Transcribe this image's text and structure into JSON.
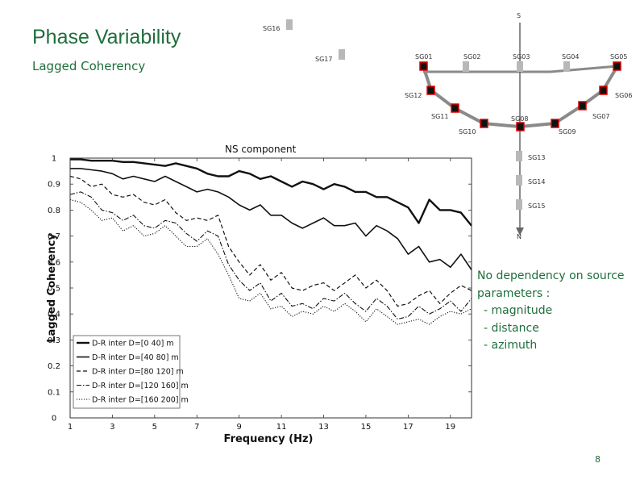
{
  "slide": {
    "title": "Phase Variability",
    "subtitle": "Lagged Coherency",
    "component_label": "NS component",
    "note": {
      "heading_lines": [
        "No dependency on source",
        "parameters :"
      ],
      "items": [
        "- magnitude",
        "- distance",
        "- azimuth"
      ]
    },
    "page_number": "8"
  },
  "array_map": {
    "north_label": "N",
    "south_label": "S",
    "stations": {
      "SG01": "SG01",
      "SG02": "SG02",
      "SG03": "SG03",
      "SG04": "SG04",
      "SG05": "SG05",
      "SG06": "SG06",
      "SG07": "SG07",
      "SG08": "SG08",
      "SG09": "SG09",
      "SG10": "SG10",
      "SG11": "SG11",
      "SG12": "SG12",
      "SG13": "SG13",
      "SG14": "SG14",
      "SG15": "SG15",
      "SG16": "SG16",
      "SG17": "SG17"
    },
    "colors": {
      "station_red": "#e00000",
      "station_gray": "#b8b8b8",
      "line_gray": "#8a8a8a"
    }
  },
  "chart_data": {
    "type": "line",
    "xlabel": "Frequency (Hz)",
    "ylabel": "Lagged Coherency",
    "xlim": [
      1,
      20
    ],
    "ylim": [
      0,
      1
    ],
    "xticks": [
      1,
      3,
      5,
      7,
      9,
      11,
      13,
      15,
      17,
      19
    ],
    "yticks": [
      0,
      0.1,
      0.2,
      0.3,
      0.4,
      0.5,
      "0.6",
      0.7,
      0.8,
      0.9,
      1
    ],
    "legend_position": "bottom-left",
    "grid": false,
    "series": [
      {
        "name": "D-R inter D=[0 40] m",
        "style": "solid-thick",
        "x": [
          1,
          1.5,
          2,
          2.5,
          3,
          3.5,
          4,
          4.5,
          5,
          5.5,
          6,
          6.5,
          7,
          7.5,
          8,
          8.5,
          9,
          9.5,
          10,
          10.5,
          11,
          11.5,
          12,
          12.5,
          13,
          13.5,
          14,
          14.5,
          15,
          15.5,
          16,
          16.5,
          17,
          17.5,
          18,
          18.5,
          19,
          19.5,
          20
        ],
        "y": [
          0.995,
          0.995,
          0.99,
          0.99,
          0.99,
          0.985,
          0.985,
          0.98,
          0.975,
          0.97,
          0.98,
          0.97,
          0.96,
          0.94,
          0.93,
          0.93,
          0.95,
          0.94,
          0.92,
          0.93,
          0.91,
          0.89,
          0.91,
          0.9,
          0.88,
          0.9,
          0.89,
          0.87,
          0.87,
          0.85,
          0.85,
          0.83,
          0.81,
          0.75,
          0.84,
          0.8,
          0.8,
          0.79,
          0.74
        ]
      },
      {
        "name": "D-R inter D=[40 80] m",
        "style": "solid",
        "x": [
          1,
          1.5,
          2,
          2.5,
          3,
          3.5,
          4,
          4.5,
          5,
          5.5,
          6,
          6.5,
          7,
          7.5,
          8,
          8.5,
          9,
          9.5,
          10,
          10.5,
          11,
          11.5,
          12,
          12.5,
          13,
          13.5,
          14,
          14.5,
          15,
          15.5,
          16,
          16.5,
          17,
          17.5,
          18,
          18.5,
          19,
          19.5,
          20
        ],
        "y": [
          0.96,
          0.96,
          0.955,
          0.95,
          0.94,
          0.92,
          0.93,
          0.92,
          0.91,
          0.93,
          0.91,
          0.89,
          0.87,
          0.88,
          0.87,
          0.85,
          0.82,
          0.8,
          0.82,
          0.78,
          0.78,
          0.75,
          0.73,
          0.75,
          0.77,
          0.74,
          0.74,
          0.75,
          0.7,
          0.74,
          0.72,
          0.69,
          0.63,
          0.66,
          0.6,
          0.61,
          0.58,
          0.63,
          0.57
        ]
      },
      {
        "name": "D-R inter D=[80 120] m",
        "style": "dashed",
        "x": [
          1,
          1.5,
          2,
          2.5,
          3,
          3.5,
          4,
          4.5,
          5,
          5.5,
          6,
          6.5,
          7,
          7.5,
          8,
          8.5,
          9,
          9.5,
          10,
          10.5,
          11,
          11.5,
          12,
          12.5,
          13,
          13.5,
          14,
          14.5,
          15,
          15.5,
          16,
          16.5,
          17,
          17.5,
          18,
          18.5,
          19,
          19.5,
          20
        ],
        "y": [
          0.93,
          0.92,
          0.89,
          0.9,
          0.86,
          0.85,
          0.86,
          0.83,
          0.82,
          0.84,
          0.79,
          0.76,
          0.77,
          0.76,
          0.78,
          0.66,
          0.6,
          0.55,
          0.59,
          0.53,
          0.56,
          0.5,
          0.49,
          0.51,
          0.52,
          0.49,
          0.52,
          0.55,
          0.5,
          0.53,
          0.49,
          0.43,
          0.44,
          0.47,
          0.49,
          0.44,
          0.48,
          0.51,
          0.49
        ]
      },
      {
        "name": "D-R inter D=[120 160] m",
        "style": "dash-dot",
        "x": [
          1,
          1.5,
          2,
          2.5,
          3,
          3.5,
          4,
          4.5,
          5,
          5.5,
          6,
          6.5,
          7,
          7.5,
          8,
          8.5,
          9,
          9.5,
          10,
          10.5,
          11,
          11.5,
          12,
          12.5,
          13,
          13.5,
          14,
          14.5,
          15,
          15.5,
          16,
          16.5,
          17,
          17.5,
          18,
          18.5,
          19,
          19.5,
          20
        ],
        "y": [
          0.86,
          0.87,
          0.85,
          0.8,
          0.79,
          0.76,
          0.78,
          0.74,
          0.73,
          0.76,
          0.75,
          0.71,
          0.68,
          0.72,
          0.7,
          0.59,
          0.53,
          0.49,
          0.52,
          0.45,
          0.48,
          0.43,
          0.44,
          0.42,
          0.46,
          0.45,
          0.48,
          0.44,
          0.41,
          0.46,
          0.43,
          0.38,
          0.39,
          0.43,
          0.4,
          0.42,
          0.45,
          0.41,
          0.46
        ]
      },
      {
        "name": "D-R inter D=[160 200] m",
        "style": "dotted",
        "x": [
          1,
          1.5,
          2,
          2.5,
          3,
          3.5,
          4,
          4.5,
          5,
          5.5,
          6,
          6.5,
          7,
          7.5,
          8,
          8.5,
          9,
          9.5,
          10,
          10.5,
          11,
          11.5,
          12,
          12.5,
          13,
          13.5,
          14,
          14.5,
          15,
          15.5,
          16,
          16.5,
          17,
          17.5,
          18,
          18.5,
          19,
          19.5,
          20
        ],
        "y": [
          0.84,
          0.83,
          0.8,
          0.76,
          0.77,
          0.72,
          0.74,
          0.7,
          0.71,
          0.74,
          0.7,
          0.66,
          0.66,
          0.69,
          0.63,
          0.55,
          0.46,
          0.45,
          0.48,
          0.42,
          0.43,
          0.39,
          0.41,
          0.4,
          0.43,
          0.41,
          0.44,
          0.41,
          0.37,
          0.42,
          0.39,
          0.36,
          0.37,
          0.38,
          0.36,
          0.39,
          0.41,
          0.4,
          0.42
        ]
      }
    ]
  }
}
